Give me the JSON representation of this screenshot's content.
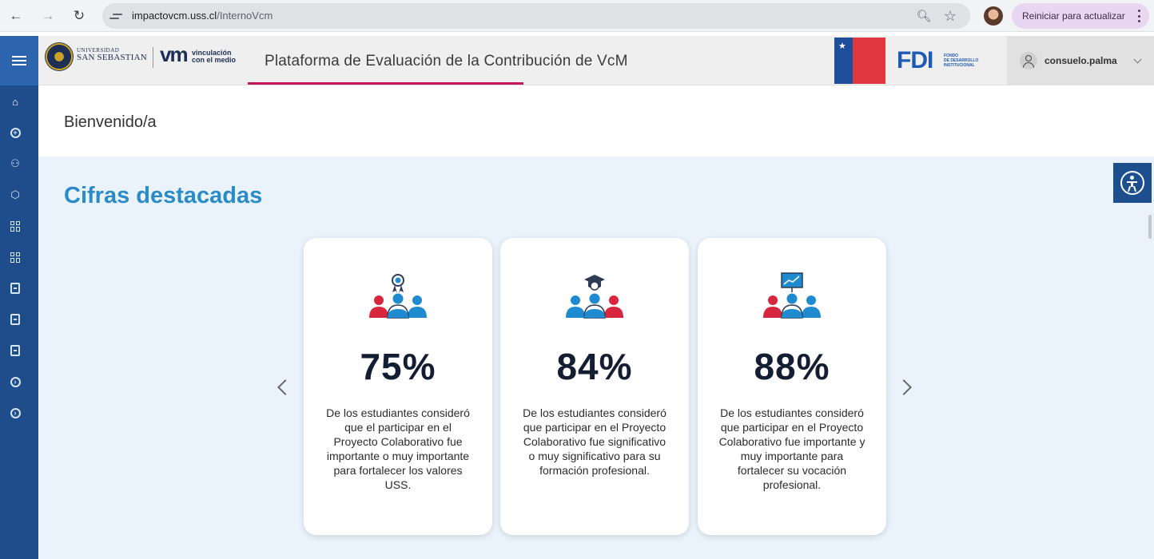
{
  "browser": {
    "url_host": "impactovcm.uss.cl",
    "url_path": "/InternoVcm",
    "update_label": "Reiniciar para actualizar"
  },
  "header": {
    "uss_line1": "UNIVERSIDAD",
    "uss_line2": "SAN SEBASTIAN",
    "vm_mark": "vm",
    "vm_sub_line1": "vinculación",
    "vm_sub_line2": "con el medio",
    "platform_title": "Plataforma de Evaluación de la Contribución de VcM",
    "fdi_logo": "FDI",
    "fdi_sub_line1": "FONDO",
    "fdi_sub_line2": "DE DESARROLLO",
    "fdi_sub_line3": "INSTITUCIONAL",
    "username": "consuelo.palma"
  },
  "sidebar": {
    "icons": [
      "home-icon",
      "plus-circle-icon",
      "group-icon",
      "box-icon",
      "grid-icon",
      "grid-icon",
      "book-icon",
      "book-icon",
      "book-icon",
      "arrow-circle-icon",
      "arrow-circle-icon"
    ]
  },
  "main": {
    "welcome": "Bienvenido/a",
    "section_title": "Cifras destacadas",
    "cards": [
      {
        "icon": "award-group-icon",
        "percent": "75%",
        "description": "De los estudiantes consideró que el participar en el Proyecto Colaborativo fue importante o muy importante para fortalecer los valores USS."
      },
      {
        "icon": "graduation-group-icon",
        "percent": "84%",
        "description": "De los estudiantes consideró que participar en el Proyecto Colaborativo fue significativo o muy significativo para su formación profesional."
      },
      {
        "icon": "presentation-group-icon",
        "percent": "88%",
        "description": "De los estudiantes consideró que participar en el Proyecto Colaborativo fue importante y muy importante para fortalecer su vocación profesional."
      }
    ]
  },
  "colors": {
    "sidebar": "#1f4d8c",
    "accent_title": "#2b8bc6",
    "underline": "#c2185b",
    "main_bg": "#eaf3fb"
  }
}
